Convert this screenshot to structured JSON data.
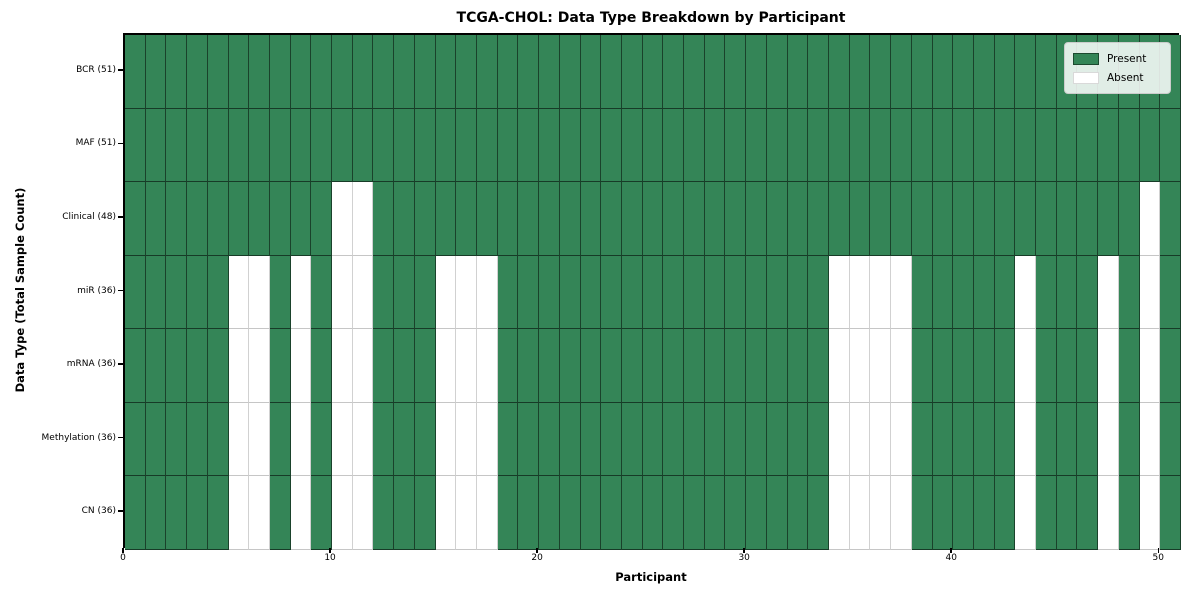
{
  "chart_data": {
    "type": "heatmap",
    "title": "TCGA-CHOL: Data Type Breakdown by Participant",
    "xlabel": "Participant",
    "ylabel": "Data Type (Total Sample Count)",
    "x_ticks": [
      0,
      10,
      20,
      30,
      40,
      50
    ],
    "n_participants": 51,
    "x_range": [
      0,
      51
    ],
    "grid": "cell-edges",
    "colors": {
      "present": "#348557",
      "absent": "#ffffff"
    },
    "legend": {
      "position": "upper-right",
      "entries": [
        {
          "label": "Present",
          "state": "present",
          "color": "#348557"
        },
        {
          "label": "Absent",
          "state": "absent",
          "color": "#ffffff"
        }
      ]
    },
    "rows": [
      {
        "label": "BCR (51)",
        "data_type": "BCR",
        "total_samples": 51,
        "absent_participants": []
      },
      {
        "label": "MAF (51)",
        "data_type": "MAF",
        "total_samples": 51,
        "absent_participants": []
      },
      {
        "label": "Clinical (48)",
        "data_type": "Clinical",
        "total_samples": 48,
        "absent_participants": [
          10,
          11,
          49
        ]
      },
      {
        "label": "miR (36)",
        "data_type": "miR",
        "total_samples": 36,
        "absent_participants": [
          5,
          6,
          8,
          10,
          11,
          15,
          16,
          17,
          34,
          35,
          36,
          37,
          43,
          47,
          49
        ]
      },
      {
        "label": "mRNA (36)",
        "data_type": "mRNA",
        "total_samples": 36,
        "absent_participants": [
          5,
          6,
          8,
          10,
          11,
          15,
          16,
          17,
          34,
          35,
          36,
          37,
          43,
          47,
          49
        ]
      },
      {
        "label": "Methylation (36)",
        "data_type": "Methylation",
        "total_samples": 36,
        "absent_participants": [
          5,
          6,
          8,
          10,
          11,
          15,
          16,
          17,
          34,
          35,
          36,
          37,
          43,
          47,
          49
        ]
      },
      {
        "label": "CN (36)",
        "data_type": "CN",
        "total_samples": 36,
        "absent_participants": [
          5,
          6,
          8,
          10,
          11,
          15,
          16,
          17,
          34,
          35,
          36,
          37,
          43,
          47,
          49
        ]
      }
    ]
  }
}
